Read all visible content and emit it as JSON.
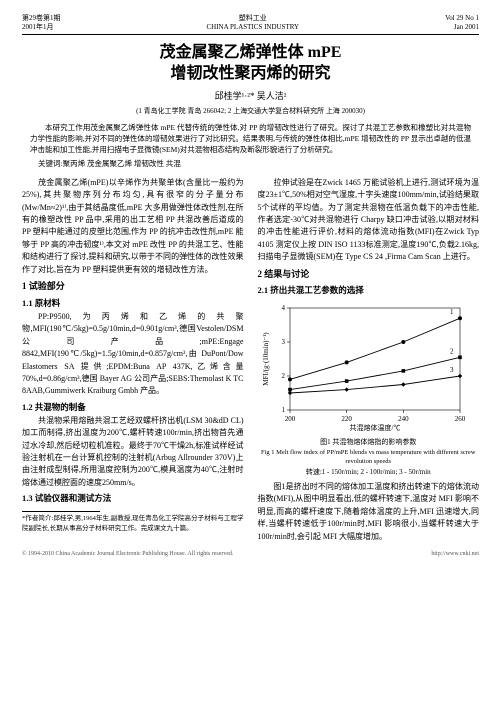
{
  "header": {
    "leftLine1": "第29卷第1期",
    "leftLine2": "2001年1月",
    "centerLine1": "塑料工业",
    "centerLine2": "CHINA PLASTICS INDUSTRY",
    "rightLine1": "Vol 29 No 1",
    "rightLine2": "Jan 2001"
  },
  "title": {
    "line1": "茂金属聚乙烯弹性体 mPE",
    "line2": "增韧改性聚丙烯的研究"
  },
  "authors": "邱桂学¹·²*  吴人洁²",
  "affil": "(1 青岛化工学院 青岛 266042; 2 上海交通大学复合材料研究所 上海 200030)",
  "abstract": {
    "p1": "本研究工作用茂金属聚乙烯弹性体 mPE 代替传统的弹性体,对 PP 的增韧改性进行了研究。探讨了共混工艺参数和橡塑比对共混物力学性能的影响,并对不同的弹性体的增韧效果进行了对比研究。结果表明,与传统的弹性体相比,mPE 增韧改性的 PP 显示出卓越的低温冲击能和加工性能,并用扫描电子显微镜(SEM)对共混物相态结构及断裂形貌进行了分析研究。",
    "keywords": "关键词:聚丙烯  茂金属聚乙烯  增韧改性  共混"
  },
  "leftCol": {
    "p1": "茂金属聚乙烯(mPE)以辛烯作为共聚单体(含量比一般约为25%),其共聚物序列分布均匀,具有很窄的分子量分布(Mw/Mn≈2)¹⁾,由于其结晶度低,mPE 大多用做弹性体改性剂,在所有的橡塑改性 PP 品中,采用的出工艺相 PP 共混改善后道成的 PP 塑料中能通过的皮塑比范围,作为 PP 的抗冲击改性剂,mPE 能够于 PP 高的冲击韧度¹⁾,本文对 mPE 改性 PP 的共混工艺、性能和结构进行了探讨,提料和研究,以带于不同的弹性体的改性效果作了对比,旨在为 PP 塑料提供更有效的增韧改性方法。",
    "s1": "1  试验部分",
    "s1_1": "1.1  原材料",
    "p2": "PP:P9500,为丙烯和乙烯的共聚物,MFI(190℃/5kg)=0.5g/10min,d=0.901g/cm³,德国Vestolen/DSM 公司产品;mPE:Engage 8842,MFI(190℃/5kg)=1.5g/10min,d=0.857g/cm³,由 DuPont/Dow Elastomers SA 提供;EPDM:Buna AP 437K,乙烯含量70%,d=0.86g/cm³,德国 Bayer AG 公司产品;SEBS:Themolast K TC 8AAB,Gummiwerk Kraiburg Gmbh 产品。",
    "s1_2": "1.2  共混物的制备",
    "p3": "共混物采用熔融共混工艺经双螺杆挤出机(LSM 30&dD CL)加工而制得,挤出温度为200℃,螺杆转速100r/min,挤出物首先通过水冷却,然后经切粒机准粒。最终于70℃干燥2h,标准试样经试验注射机在一台计算机控制的注射机(Arbug Allrounder 370V)上由注射成型制得,所用温度控制为200℃,模具温度为40℃,注射时熔体通过模腔面的速度250mm/s。",
    "s1_3": "1.3  试验仪器和测试方法"
  },
  "rightCol": {
    "p1": "拉伸试验是在Zwick 1465 万能试验机上进行,测试环境为温度23±1℃,50%相对空气湿度,十字头速度100mm/min,试验结果取5个试样的平均值。为了测定共混物在低温负载下的冲击性能,作者选定-30℃对共混物进行 Charpy 缺口冲击试验,以期对材料的冲击性能进行评价,材料的熔体流动指数(MFI)在Zwick Typ 4105 测定仪上按 DIN ISO 1133标准测定,温度190℃,负载2.16kg,扫描电子显微镜(SEM)在 Type CS 24 ,Firma Cam Scan 上进行。",
    "s2": "2  结果与讨论",
    "s2_1": "2.1  挤出共混工艺参数的选择",
    "p2": "图1是挤出时不同的熔体加工温度和挤出转速下的熔体流动指数(MFI),从图中明显看出,低的螺杆转速下,温度对 MFI 影响不明显,而高的螺杆速度下,随着熔体温度的上升,MFI 迅速增大,同样,当螺杆转速低于100r/min时,MFI 影响很小,当螺杆转速大于100r/min时,会引起 MFI 大幅度增加。"
  },
  "chart": {
    "type": "line",
    "xlabel": "共混熔体温度/℃",
    "ylabel": "MFI/(g·(10min)⁻¹)",
    "titleCn": "图1 共混物熔体熔指的影响参数",
    "titleEn": "Fig 1 Melt flow index of PP/mPE blends vs mass temperature with different screw revolution speeds",
    "legend": "转速:1 - 150r/min; 2 - 100r/min; 3 - 50r/min",
    "xlim": [
      200,
      260
    ],
    "ylim": [
      1,
      4
    ],
    "xticks": [
      200,
      220,
      240,
      260
    ],
    "yticks": [
      1,
      2,
      3,
      4
    ],
    "series": [
      {
        "name": "1",
        "x": [
          200,
          220,
          240,
          260
        ],
        "y": [
          1.9,
          2.4,
          3.0,
          3.7
        ],
        "marker": "circle"
      },
      {
        "name": "2",
        "x": [
          200,
          220,
          240,
          260
        ],
        "y": [
          1.6,
          1.85,
          2.15,
          2.55
        ],
        "marker": "square"
      },
      {
        "name": "3",
        "x": [
          200,
          220,
          240,
          260
        ],
        "y": [
          1.5,
          1.6,
          1.75,
          2.0
        ],
        "marker": "diamond"
      }
    ],
    "lineColor": "#000000",
    "background": "#ffffff",
    "fontSize": 7
  },
  "footnote": {
    "text": "*作者简介:邱桂学,男,1964年生,副教授,现任青岛化工学院高分子材料与工程学院副院长,长期从事高分子材料研究工作。完成课文九十篇。"
  },
  "bottom": {
    "left": "© 1994-2010 China Academic Journal Electronic Publishing House. All rights reserved.",
    "right": "http://www.cnki.net"
  }
}
